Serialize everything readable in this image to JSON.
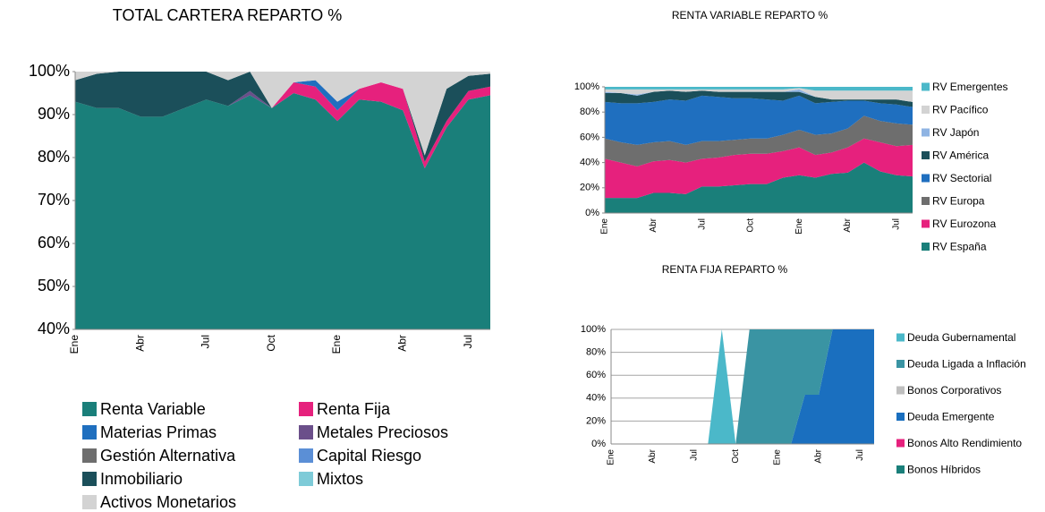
{
  "chart_data": [
    {
      "type": "area",
      "title": "TOTAL CARTERA REPARTO %",
      "legend": "bottom",
      "grid": false,
      "categories": [
        "Ene",
        null,
        null,
        "Abr",
        null,
        null,
        "Jul",
        null,
        null,
        "Oct",
        null,
        null,
        "Ene",
        null,
        null,
        "Abr",
        null,
        null,
        "Jul",
        null
      ],
      "ylim": [
        40,
        100
      ],
      "yticks": [
        {
          "value": 40,
          "label": "40%"
        },
        {
          "value": 50,
          "label": "50%"
        },
        {
          "value": 60,
          "label": "60%"
        },
        {
          "value": 70,
          "label": "70%"
        },
        {
          "value": 80,
          "label": "80%"
        },
        {
          "value": 90,
          "label": "90%"
        },
        {
          "value": 100,
          "label": "100%"
        }
      ],
      "series": [
        {
          "name": "Renta Variable",
          "color": "#1a7f7a",
          "values": [
            93,
            91.5,
            91.5,
            89.5,
            89.5,
            91.5,
            93.5,
            92,
            94.5,
            91.5,
            95,
            93.5,
            88.5,
            93.5,
            93,
            91,
            77.5,
            87,
            93.5,
            94.5
          ]
        },
        {
          "name": "Renta Fija",
          "color": "#e6217d",
          "values": [
            0,
            0,
            0,
            0,
            0,
            0,
            0,
            0,
            0,
            0,
            2.5,
            3,
            2.5,
            2.5,
            4.5,
            5,
            1.5,
            1.5,
            2,
            2
          ]
        },
        {
          "name": "Materias Primas",
          "color": "#1f6fbf",
          "values": [
            0,
            0,
            0,
            0,
            0,
            0,
            0,
            0,
            0,
            0,
            0,
            1.5,
            2,
            0,
            0,
            0,
            0,
            0,
            0,
            0
          ]
        },
        {
          "name": "Metales Preciosos",
          "color": "#6b4f8a",
          "values": [
            0,
            0,
            0,
            0,
            0,
            0,
            0,
            0,
            1,
            0,
            0,
            0,
            0,
            0,
            0,
            0,
            0,
            0,
            0,
            0
          ]
        },
        {
          "name": "Gestión Alternativa",
          "color": "#6e6e6e",
          "values": [
            0,
            0,
            0,
            0,
            0,
            0,
            0,
            0,
            0,
            0,
            0,
            0,
            0,
            0,
            0,
            0,
            0,
            0,
            0,
            0
          ]
        },
        {
          "name": "Capital Riesgo",
          "color": "#5b8fd6",
          "values": [
            0,
            0,
            0,
            0,
            0,
            0,
            0,
            0,
            0,
            0,
            0,
            0,
            0,
            0,
            0,
            0,
            0,
            0,
            0,
            0
          ]
        },
        {
          "name": "Inmobiliario",
          "color": "#1b4f5a",
          "values": [
            5,
            8,
            8.5,
            10.5,
            10.5,
            8.5,
            6.5,
            6,
            4.5,
            0,
            0,
            0,
            0,
            0,
            0,
            0,
            1.5,
            7.5,
            3.5,
            3
          ]
        },
        {
          "name": "Mixtos",
          "color": "#7ecbd8",
          "values": [
            0,
            0,
            0,
            0,
            0,
            0,
            0,
            0,
            0,
            0,
            0,
            0,
            0,
            0,
            0,
            0,
            0,
            0,
            0,
            0
          ]
        },
        {
          "name": "Activos Monetarios",
          "color": "#d3d3d3",
          "values": [
            2,
            0.5,
            0,
            0,
            0,
            0,
            0,
            2,
            0,
            8.5,
            2.5,
            2,
            7,
            4,
            2.5,
            4,
            19.5,
            4,
            1,
            0.5
          ]
        }
      ]
    },
    {
      "type": "area",
      "title": "RENTA VARIABLE REPARTO %",
      "legend": "right",
      "grid": false,
      "categories": [
        "Ene",
        null,
        null,
        "Abr",
        null,
        null,
        "Jul",
        null,
        null,
        "Oct",
        null,
        null,
        "Ene",
        null,
        null,
        "Abr",
        null,
        null,
        "Jul",
        null
      ],
      "ylim": [
        0,
        100
      ],
      "yticks": [
        {
          "value": 0,
          "label": "0%"
        },
        {
          "value": 20,
          "label": "20%"
        },
        {
          "value": 40,
          "label": "40%"
        },
        {
          "value": 60,
          "label": "60%"
        },
        {
          "value": 80,
          "label": "80%"
        },
        {
          "value": 100,
          "label": "100%"
        }
      ],
      "series": [
        {
          "name": "RV España",
          "color": "#1a7f7a",
          "values": [
            12,
            12,
            12,
            16,
            16,
            15,
            21,
            21,
            22,
            23,
            23,
            28,
            30,
            28,
            31,
            32,
            40,
            33,
            30,
            29
          ]
        },
        {
          "name": "RV Eurozona",
          "color": "#e6217d",
          "values": [
            31,
            28,
            25,
            25,
            26,
            25,
            22,
            23,
            24,
            24,
            24,
            21,
            22,
            18,
            17,
            20,
            19,
            23,
            23,
            25
          ]
        },
        {
          "name": "RV Europa",
          "color": "#6e6e6e",
          "values": [
            16,
            16,
            17,
            15,
            15,
            14,
            14,
            13,
            12,
            12,
            12,
            13,
            14,
            16,
            15,
            15,
            18,
            17,
            18,
            16
          ]
        },
        {
          "name": "RV Sectorial",
          "color": "#1f6fbf",
          "values": [
            29,
            31,
            33,
            32,
            33,
            35,
            36,
            35,
            33,
            32,
            31,
            27,
            27,
            25,
            25,
            22,
            12,
            14,
            15,
            14
          ]
        },
        {
          "name": "RV América",
          "color": "#1b4f5a",
          "values": [
            7,
            8,
            6,
            8,
            7,
            7,
            4,
            4,
            5,
            5,
            6,
            7,
            3,
            5,
            2,
            1,
            1,
            3,
            4,
            4
          ]
        },
        {
          "name": "RV Japón",
          "color": "#8fb4e3",
          "values": [
            1,
            0,
            1,
            0,
            0,
            0,
            0,
            0,
            0,
            0,
            0,
            0,
            2,
            0,
            0,
            0,
            0,
            0,
            0,
            0
          ]
        },
        {
          "name": "RV Pacífico",
          "color": "#d3d3d3",
          "values": [
            2,
            3,
            4,
            2,
            1,
            2,
            1,
            2,
            2,
            2,
            2,
            2,
            1,
            5,
            7,
            7,
            7,
            7,
            7,
            9
          ]
        },
        {
          "name": "RV Emergentes",
          "color": "#4bb8c9",
          "values": [
            2,
            2,
            2,
            2,
            2,
            2,
            2,
            2,
            2,
            2,
            2,
            2,
            1,
            3,
            3,
            3,
            3,
            3,
            3,
            3
          ]
        }
      ]
    },
    {
      "type": "area",
      "title": "RENTA FIJA REPARTO %",
      "legend": "right",
      "grid": true,
      "categories": [
        "Ene",
        null,
        null,
        "Abr",
        null,
        null,
        "Jul",
        null,
        null,
        "Oct",
        null,
        null,
        "Ene",
        null,
        null,
        "Abr",
        null,
        null,
        "Jul",
        null
      ],
      "ylim": [
        0,
        100
      ],
      "yticks": [
        {
          "value": 0,
          "label": "0%"
        },
        {
          "value": 20,
          "label": "20%"
        },
        {
          "value": 40,
          "label": "40%"
        },
        {
          "value": 60,
          "label": "60%"
        },
        {
          "value": 80,
          "label": "80%"
        },
        {
          "value": 100,
          "label": "100%"
        }
      ],
      "series": [
        {
          "name": "Bonos Híbridos",
          "color": "#1a7f7a",
          "values": [
            0,
            0,
            0,
            0,
            0,
            0,
            0,
            0,
            0,
            0,
            0,
            0,
            0,
            0,
            0,
            0,
            0,
            0,
            0,
            0
          ]
        },
        {
          "name": "Bonos Alto Rendimiento",
          "color": "#e6217d",
          "values": [
            0,
            0,
            0,
            0,
            0,
            0,
            0,
            0,
            0,
            0,
            0,
            0,
            0,
            0,
            0,
            0,
            0,
            0,
            0,
            0
          ]
        },
        {
          "name": "Deuda Emergente",
          "color": "#1a6fbf",
          "values": [
            0,
            0,
            0,
            0,
            0,
            0,
            0,
            0,
            0,
            0,
            0,
            0,
            0,
            0,
            43,
            43,
            100,
            100,
            100,
            100
          ]
        },
        {
          "name": "Bonos Corporativos",
          "color": "#bfbfbf",
          "values": [
            0,
            0,
            0,
            0,
            0,
            0,
            0,
            0,
            0,
            0,
            0,
            0,
            0,
            0,
            0,
            0,
            0,
            0,
            0,
            0
          ]
        },
        {
          "name": "Deuda Ligada a Inflación",
          "color": "#3a94a3",
          "values": [
            0,
            0,
            0,
            0,
            0,
            0,
            0,
            0,
            0,
            0,
            100,
            100,
            100,
            100,
            57,
            57,
            0,
            0,
            0,
            0
          ]
        },
        {
          "name": "Deuda Gubernamental",
          "color": "#4bb8c9",
          "values": [
            0,
            0,
            0,
            0,
            0,
            0,
            0,
            0,
            100,
            0,
            0,
            0,
            0,
            0,
            0,
            0,
            0,
            0,
            0,
            0
          ]
        }
      ]
    }
  ]
}
